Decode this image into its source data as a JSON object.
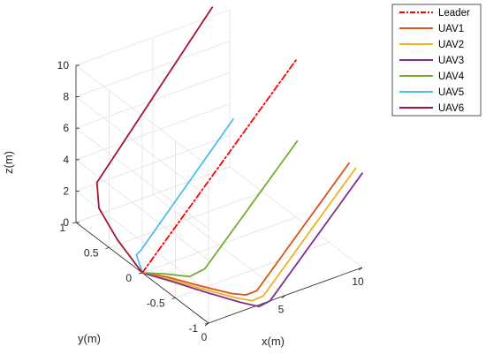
{
  "chart_data": {
    "type": "line",
    "projection": "3d",
    "title": "",
    "xlabel": "x(m)",
    "ylabel": "y(m)",
    "zlabel": "z(m)",
    "xlim": [
      0,
      10
    ],
    "ylim": [
      -1,
      1
    ],
    "zlim": [
      0,
      10
    ],
    "xticks": [
      "0",
      "5",
      "10"
    ],
    "yticks": [
      "-1",
      "-0.5",
      "0",
      "0.5",
      "1"
    ],
    "zticks": [
      "0",
      "2",
      "4",
      "6",
      "8",
      "10"
    ],
    "grid": true,
    "legend": "outside-top-right",
    "series": [
      {
        "name": "Leader",
        "color": "#ff0000",
        "style": "dashdot",
        "x": [
          0,
          10
        ],
        "y": [
          0,
          0
        ],
        "z": [
          0,
          10
        ]
      },
      {
        "name": "UAV1",
        "color": "#d95319",
        "style": "solid",
        "x": [
          0,
          1.0,
          2.0,
          3.0,
          3.5,
          4.0,
          10.0
        ],
        "y": [
          0,
          -0.15,
          -0.4,
          -0.65,
          -0.75,
          -0.8,
          -0.8
        ],
        "z": [
          0,
          -0.15,
          -0.25,
          -0.3,
          -0.25,
          0,
          6.0
        ]
      },
      {
        "name": "UAV2",
        "color": "#edb120",
        "style": "solid",
        "x": [
          0,
          1.0,
          2.0,
          3.0,
          3.5,
          4.0,
          10.0
        ],
        "y": [
          0,
          -0.18,
          -0.45,
          -0.72,
          -0.85,
          -0.9,
          -0.9
        ],
        "z": [
          0,
          -0.2,
          -0.3,
          -0.35,
          -0.3,
          0,
          6.0
        ]
      },
      {
        "name": "UAV3",
        "color": "#7e2f8e",
        "style": "solid",
        "x": [
          0,
          1.0,
          2.0,
          3.0,
          3.5,
          4.0,
          10.0
        ],
        "y": [
          0,
          -0.2,
          -0.5,
          -0.8,
          -0.95,
          -1.0,
          -1.0
        ],
        "z": [
          0,
          -0.25,
          -0.35,
          -0.4,
          -0.35,
          0,
          6.0
        ]
      },
      {
        "name": "UAV4",
        "color": "#77ac30",
        "style": "solid",
        "x": [
          0,
          1.0,
          2.0,
          3.0,
          9.0
        ],
        "y": [
          0,
          -0.1,
          -0.25,
          -0.25,
          -0.25
        ],
        "z": [
          0,
          -0.1,
          -0.15,
          0,
          6.0
        ]
      },
      {
        "name": "UAV5",
        "color": "#4dbeee",
        "style": "solid",
        "x": [
          0,
          0.3,
          0.7,
          1.0,
          7.0
        ],
        "y": [
          0,
          0.1,
          0.25,
          0.25,
          0.25
        ],
        "z": [
          0,
          0,
          0.1,
          0.3,
          6.5
        ]
      },
      {
        "name": "UAV6",
        "color": "#a2142f",
        "style": "solid",
        "x": [
          0,
          0.1,
          0.2,
          0.5,
          8.0
        ],
        "y": [
          0,
          0.4,
          0.7,
          0.8,
          0.8
        ],
        "z": [
          0,
          0.8,
          1.8,
          3.0,
          11.5
        ]
      }
    ]
  }
}
